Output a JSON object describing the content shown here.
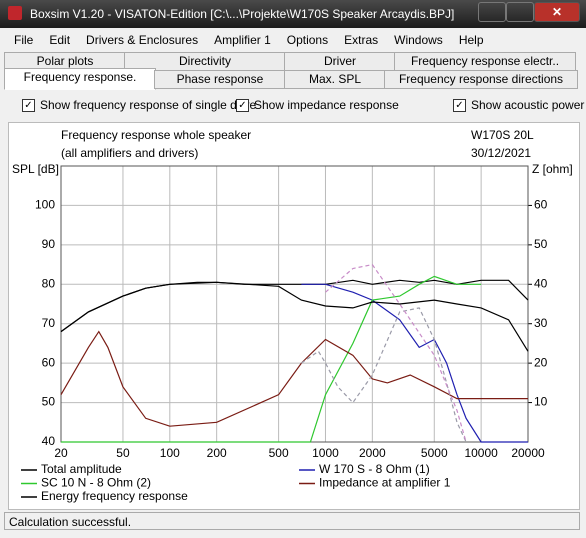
{
  "window": {
    "title": "Boxsim V1.20 - VISATON-Edition [C:\\...\\Projekte\\W170S Speaker Arcaydis.BPJ]"
  },
  "menu": [
    "File",
    "Edit",
    "Drivers & Enclosures",
    "Amplifier 1",
    "Options",
    "Extras",
    "Windows",
    "Help"
  ],
  "tabs": {
    "row1": [
      "Polar plots",
      "Directivity",
      "Driver",
      "Frequency response electr.."
    ],
    "row2": [
      "Frequency response.",
      "Phase response",
      "Max. SPL",
      "Frequency response directions"
    ]
  },
  "options": [
    "Show frequency response of single drive",
    "Show impedance response",
    "Show acoustic power"
  ],
  "status": "Calculation successful.",
  "chart_data": {
    "type": "line",
    "title": "Frequency response whole speaker",
    "subtitle": "(all amplifiers and drivers)",
    "annotations": [
      "W170S 20L",
      "30/12/2021"
    ],
    "y_label": "SPL [dB]",
    "y2_label": "Z [ohm]",
    "xlog": true,
    "grid": true,
    "xlim": [
      20,
      20000
    ],
    "xticks": [
      20,
      50,
      100,
      200,
      500,
      1000,
      2000,
      5000,
      10000,
      20000
    ],
    "ylim": [
      40,
      110
    ],
    "yticks": [
      40,
      50,
      60,
      70,
      80,
      90,
      100
    ],
    "y2lim": [
      0,
      70
    ],
    "y2ticks": [
      10,
      20,
      30,
      40,
      50,
      60
    ],
    "series": [
      {
        "name": "Total amplitude",
        "color": "#000000",
        "x": [
          20,
          30,
          50,
          70,
          100,
          150,
          200,
          300,
          500,
          700,
          1000,
          1500,
          2000,
          3000,
          4000,
          5000,
          7000,
          10000,
          15000,
          20000
        ],
        "values": [
          68,
          73,
          77,
          79,
          80,
          80.5,
          80.5,
          80,
          80,
          80,
          80,
          81,
          80,
          81,
          80.5,
          81,
          80,
          81,
          81,
          76
        ]
      },
      {
        "name": "W 170 S - 8 Ohm (1)",
        "color": "#1f1fb0",
        "x": [
          700,
          1000,
          1500,
          2000,
          3000,
          4000,
          5000,
          6000,
          7000,
          8000,
          10000,
          20000
        ],
        "values": [
          80,
          80,
          78,
          76,
          71,
          64,
          66,
          60,
          52,
          46,
          40,
          40
        ]
      },
      {
        "name": "SC 10 N - 8 Ohm (2)",
        "color": "#2ec82e",
        "x": [
          20,
          700,
          800,
          1000,
          1500,
          2000,
          3000,
          4000,
          5000,
          7000,
          10000
        ],
        "values": [
          40,
          40,
          40,
          52,
          65,
          76,
          77,
          80,
          82,
          80,
          80
        ]
      },
      {
        "name": "Impedance at amplifier 1",
        "color": "#7a1c14",
        "axis": "y2",
        "x": [
          20,
          30,
          35,
          40,
          50,
          70,
          100,
          200,
          500,
          700,
          1000,
          1500,
          2000,
          2500,
          3500,
          5000,
          7000,
          10000,
          20000
        ],
        "values": [
          12,
          24,
          28,
          24,
          14,
          6,
          4,
          5,
          12,
          20,
          26,
          22,
          16,
          15,
          17,
          14,
          11,
          11,
          11
        ]
      },
      {
        "name": "Energy frequency response",
        "color": "#000000",
        "x": [
          20,
          30,
          50,
          70,
          100,
          200,
          500,
          700,
          1000,
          1500,
          2000,
          3000,
          5000,
          7000,
          10000,
          15000,
          20000
        ],
        "values": [
          68,
          73,
          77,
          79,
          80,
          80.5,
          79.5,
          76,
          74.5,
          74,
          75.5,
          75,
          76,
          75,
          74,
          71,
          63
        ]
      },
      {
        "color": "#9a9aa8",
        "dashed": true,
        "x": [
          700,
          900,
          1000,
          1200,
          1500,
          2000,
          3000,
          4000,
          5000,
          6000,
          7000,
          8000
        ],
        "values": [
          60,
          63,
          60,
          54,
          50,
          57,
          73,
          74,
          66,
          55,
          45,
          40
        ]
      },
      {
        "color": "#c88cc8",
        "dashed": true,
        "x": [
          1000,
          1500,
          2000,
          3000,
          5000,
          7000,
          8000
        ],
        "values": [
          78,
          84,
          85,
          75,
          62,
          48,
          40
        ]
      }
    ]
  }
}
